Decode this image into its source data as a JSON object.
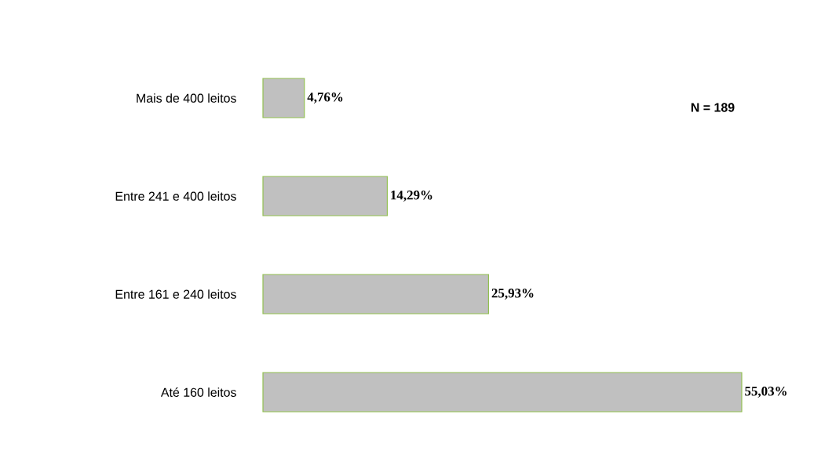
{
  "chart_data": {
    "type": "bar",
    "orientation": "horizontal",
    "categories": [
      "Mais de 400 leitos",
      "Entre 241 e 400 leitos",
      "Entre 161 e 240 leitos",
      "Até 160 leitos"
    ],
    "values": [
      4.76,
      14.29,
      25.93,
      55.03
    ],
    "value_labels": [
      "4,76%",
      "14,29%",
      "25,93%",
      "55,03%"
    ],
    "color": "#c0c0c0",
    "annotations": [
      "N = 189"
    ]
  }
}
